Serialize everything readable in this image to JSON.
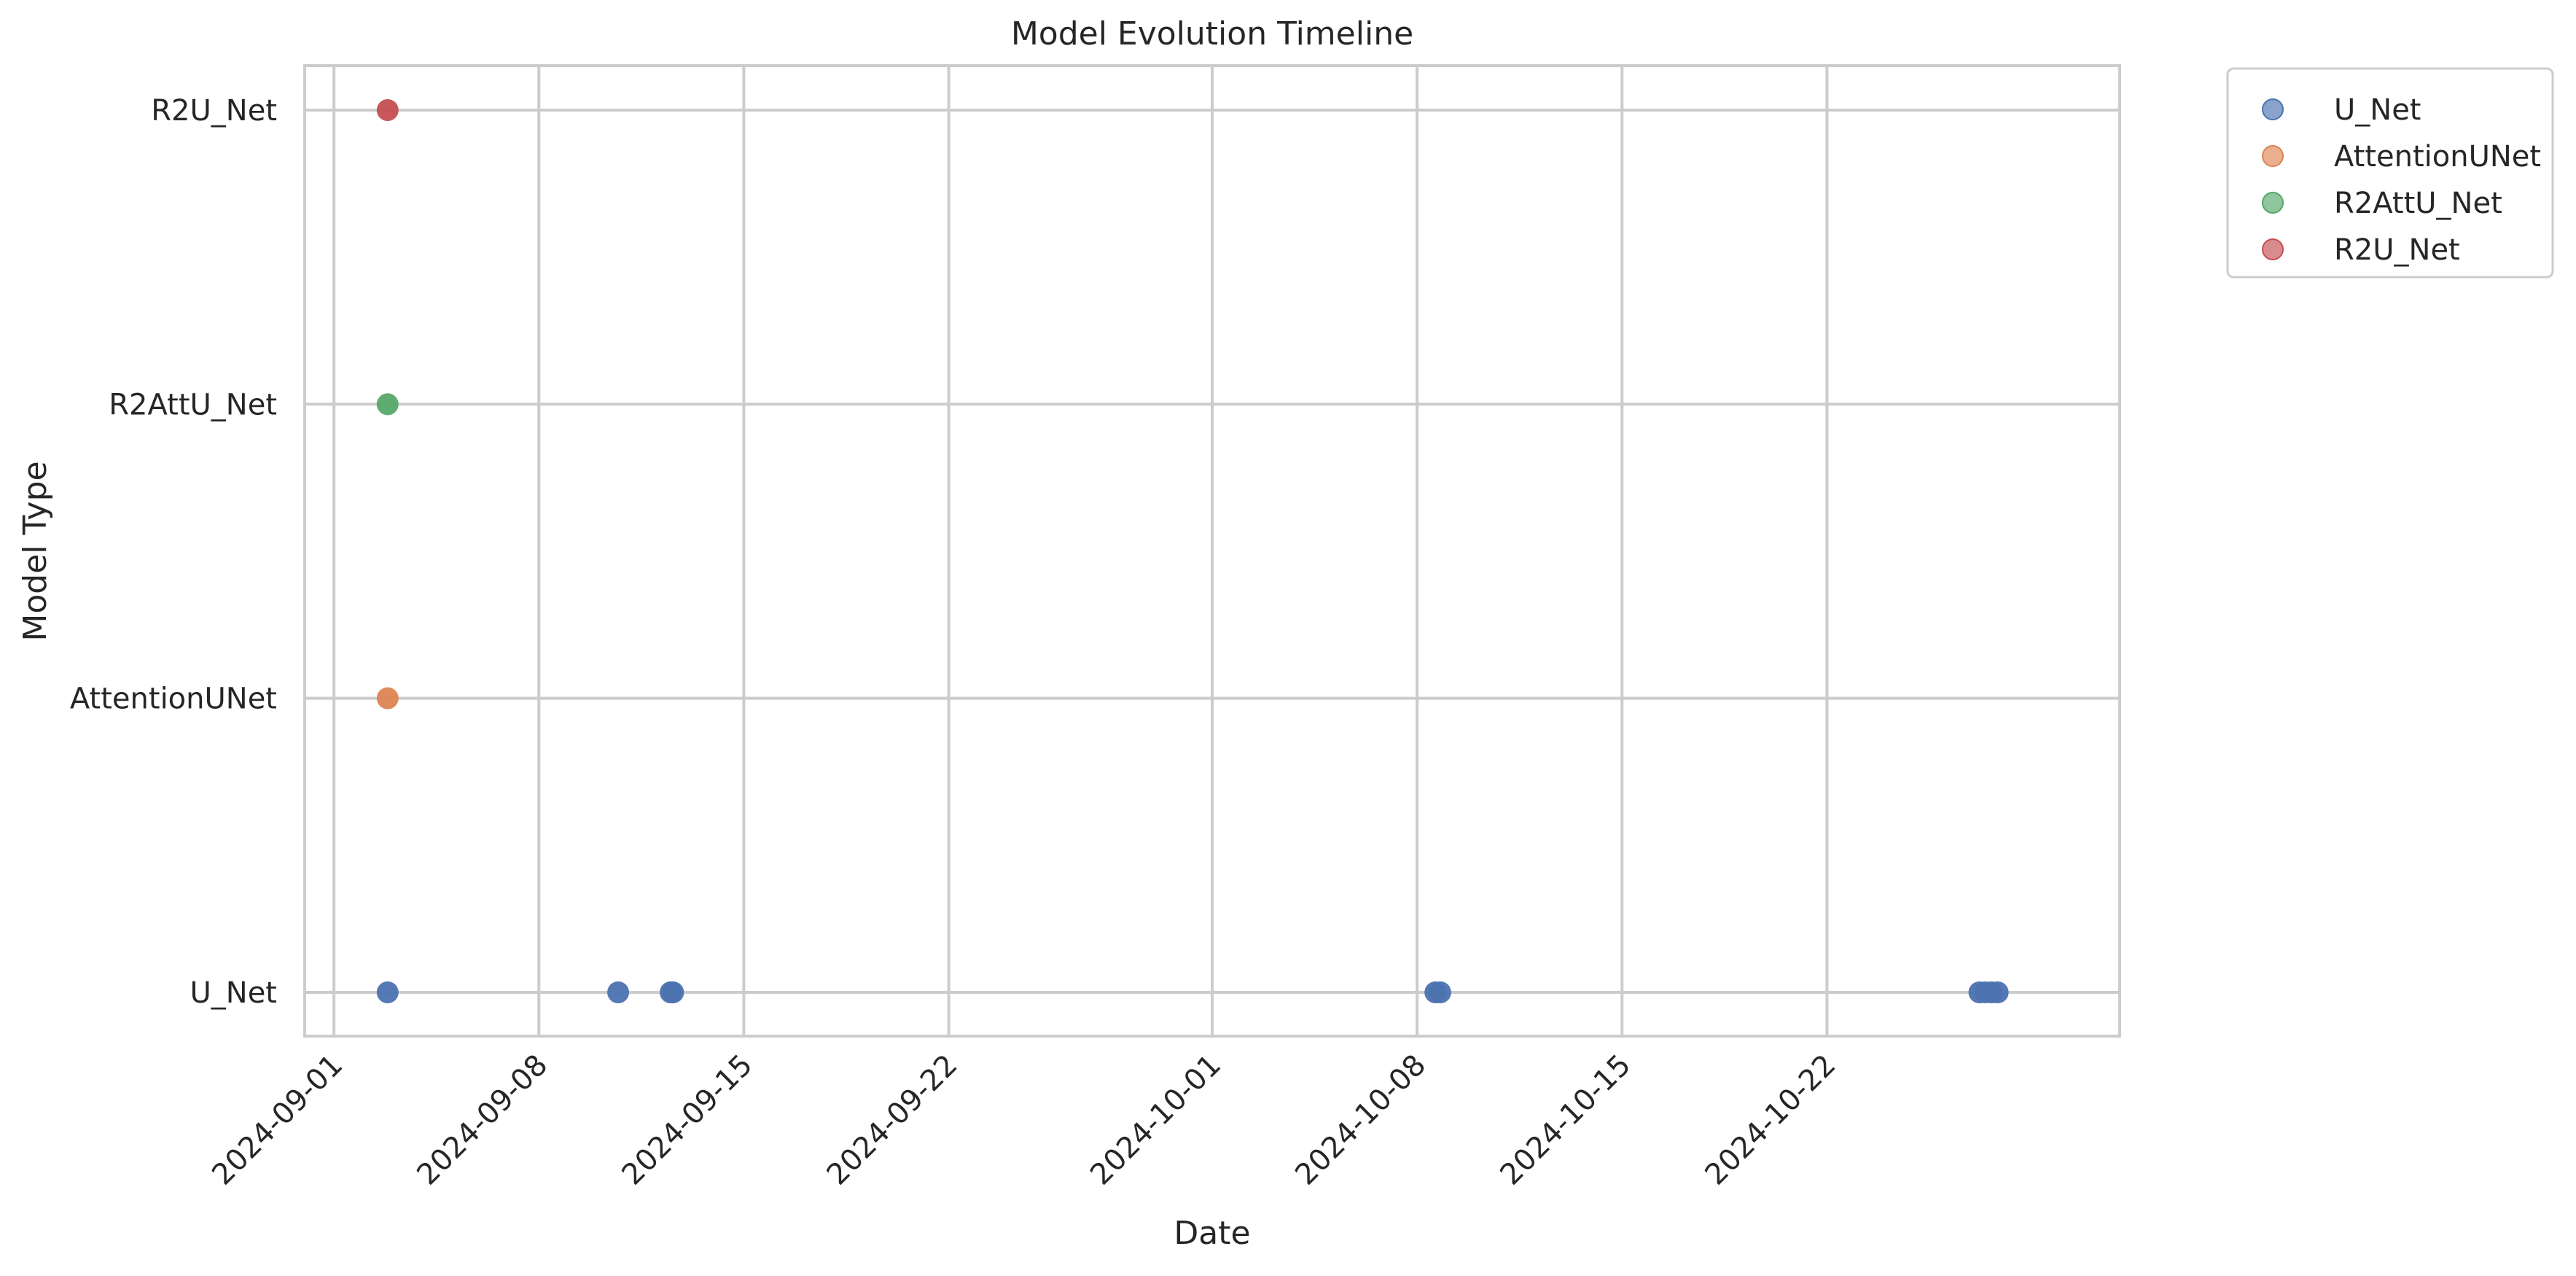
{
  "chart_data": {
    "type": "scatter",
    "title": "Model Evolution Timeline",
    "xlabel": "Date",
    "ylabel": "Model Type",
    "x_type": "date",
    "xlim": [
      "2024-08-31",
      "2024-11-01"
    ],
    "x_ticks": [
      "2024-09-01",
      "2024-09-08",
      "2024-09-15",
      "2024-09-22",
      "2024-10-01",
      "2024-10-08",
      "2024-10-15",
      "2024-10-22"
    ],
    "y_categories": [
      "U_Net",
      "AttentionUNet",
      "R2AttU_Net",
      "R2U_Net"
    ],
    "grid": true,
    "legend_position": "outside upper right",
    "series": [
      {
        "name": "U_Net",
        "color": "#4c72b0",
        "points": [
          {
            "x": "2024-09-02 20:00",
            "y": "U_Net"
          },
          {
            "x": "2024-09-10 17:00",
            "y": "U_Net"
          },
          {
            "x": "2024-09-12 12:00",
            "y": "U_Net"
          },
          {
            "x": "2024-09-12 14:00",
            "y": "U_Net"
          },
          {
            "x": "2024-10-08 15:00",
            "y": "U_Net"
          },
          {
            "x": "2024-10-08 19:00",
            "y": "U_Net"
          },
          {
            "x": "2024-10-27 05:00",
            "y": "U_Net"
          },
          {
            "x": "2024-10-27 10:00",
            "y": "U_Net"
          },
          {
            "x": "2024-10-27 15:00",
            "y": "U_Net"
          },
          {
            "x": "2024-10-27 20:00",
            "y": "U_Net"
          }
        ]
      },
      {
        "name": "AttentionUNet",
        "color": "#dd8452",
        "points": [
          {
            "x": "2024-09-02 20:00",
            "y": "AttentionUNet"
          }
        ]
      },
      {
        "name": "R2AttU_Net",
        "color": "#55a868",
        "points": [
          {
            "x": "2024-09-02 20:00",
            "y": "R2AttU_Net"
          }
        ]
      },
      {
        "name": "R2U_Net",
        "color": "#c44e52",
        "points": [
          {
            "x": "2024-09-02 20:00",
            "y": "R2U_Net"
          }
        ]
      }
    ]
  }
}
